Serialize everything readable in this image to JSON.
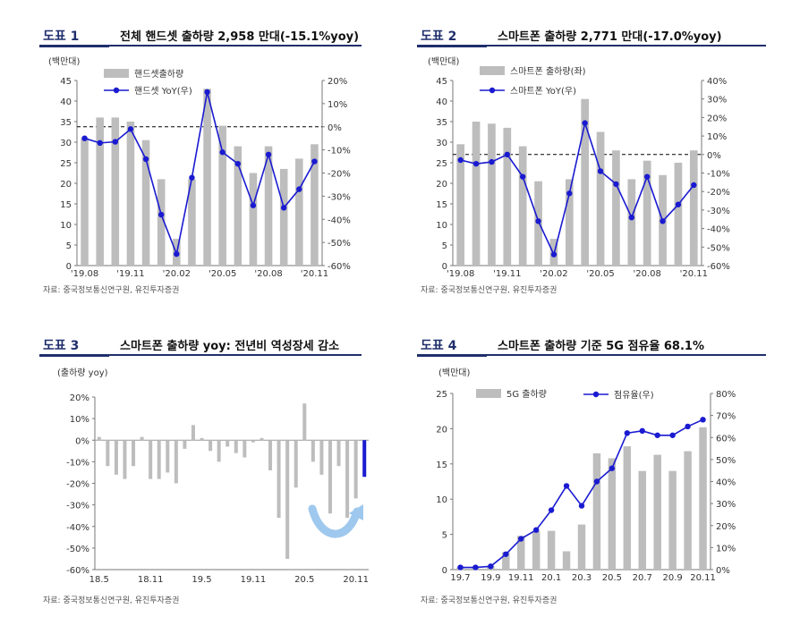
{
  "panels": [
    {
      "num": "도표 1",
      "title": "전체 핸드셋 출하량 2,958 만대(-15.1%yoy)",
      "source": "자료: 중국정보통신연구원, 유진투자증권"
    },
    {
      "num": "도표 2",
      "title": "스마트폰 출하량 2,771 만대(-17.0%yoy)",
      "source": "자료: 중국정보통신연구원, 유진투자증권"
    },
    {
      "num": "도표 3",
      "title": "스마트폰 출하량 yoy: 전년비 역성장세 감소",
      "source": "자료: 중국정보통신연구원, 유진투자증권"
    },
    {
      "num": "도표 4",
      "title": "스마트폰 출하량 기준 5G 점유율 68.1%",
      "source": "자료: 중국정보통신연구원, 유진투자증권"
    }
  ],
  "chart_data": [
    {
      "type": "bar+line",
      "unit": "(백만대)",
      "ylim": [
        0,
        45
      ],
      "y2lim": [
        -60,
        20
      ],
      "yticks": [
        "0",
        "5",
        "10",
        "15",
        "20",
        "25",
        "30",
        "35",
        "40",
        "45"
      ],
      "y2ticks": [
        "-60%",
        "-50%",
        "-40%",
        "-30%",
        "-20%",
        "-10%",
        "0%",
        "10%",
        "20%"
      ],
      "xticks": [
        {
          "i": 0,
          "label": "'19.08"
        },
        {
          "i": 3,
          "label": "'19.11"
        },
        {
          "i": 6,
          "label": "'20.02"
        },
        {
          "i": 9,
          "label": "'20.05"
        },
        {
          "i": 12,
          "label": "'20.08"
        },
        {
          "i": 15,
          "label": "'20.11"
        }
      ],
      "series": [
        {
          "name": "핸드셋출하량",
          "kind": "bar",
          "color": "#bdbdbd",
          "values": [
            31,
            36,
            36,
            35,
            30.5,
            21,
            6.5,
            21,
            43,
            34,
            29,
            22.5,
            29,
            23.5,
            26,
            29.5
          ]
        },
        {
          "name": "핸드셋 YoY(우)",
          "kind": "line",
          "color": "#1a1ad1",
          "values": [
            -5,
            -7,
            -6.5,
            -1,
            -14,
            -38,
            -55,
            -22,
            15,
            -11,
            -16,
            -34,
            -12,
            -35,
            -27,
            -15
          ]
        }
      ]
    },
    {
      "type": "bar+line",
      "unit": "(백만대)",
      "ylim": [
        0,
        45
      ],
      "y2lim": [
        -60,
        40
      ],
      "yticks": [
        "0",
        "5",
        "10",
        "15",
        "20",
        "25",
        "30",
        "35",
        "40",
        "45"
      ],
      "y2ticks": [
        "-60%",
        "-50%",
        "-40%",
        "-30%",
        "-20%",
        "-10%",
        "0%",
        "10%",
        "20%",
        "30%",
        "40%"
      ],
      "xticks": [
        {
          "i": 0,
          "label": "'19.08"
        },
        {
          "i": 3,
          "label": "'19.11"
        },
        {
          "i": 6,
          "label": "'20.02"
        },
        {
          "i": 9,
          "label": "'20.05"
        },
        {
          "i": 12,
          "label": "'20.08"
        },
        {
          "i": 15,
          "label": "'20.11"
        }
      ],
      "series": [
        {
          "name": "스마트폰 출하량(좌)",
          "kind": "bar",
          "color": "#bdbdbd",
          "values": [
            29.5,
            35,
            34.5,
            33.5,
            29,
            20.5,
            6.5,
            21,
            40.5,
            32.5,
            28,
            21,
            25.5,
            22,
            25,
            28
          ]
        },
        {
          "name": "스마트폰 YoY(우)",
          "kind": "line",
          "color": "#1a1ad1",
          "values": [
            -3,
            -5,
            -4,
            0,
            -12,
            -36,
            -54,
            -21,
            17,
            -9,
            -16,
            -34,
            -12,
            -36,
            -27,
            -16.5
          ]
        }
      ]
    },
    {
      "type": "bar",
      "unit": "(출하량 yoy)",
      "ylim": [
        -60,
        20
      ],
      "yticks": [
        "-60%",
        "-50%",
        "-40%",
        "-30%",
        "-20%",
        "-10%",
        "0%",
        "10%",
        "20%"
      ],
      "xticks": [
        {
          "i": 0,
          "label": "18.5"
        },
        {
          "i": 6,
          "label": "18.11"
        },
        {
          "i": 12,
          "label": "19.5"
        },
        {
          "i": 18,
          "label": "19.11"
        },
        {
          "i": 24,
          "label": "20.5"
        },
        {
          "i": 30,
          "label": "20.11"
        }
      ],
      "highlight_color": "#1a1ad1",
      "series": [
        {
          "name": "스마트폰 출하량 yoy",
          "kind": "bar",
          "color": "#bdbdbd",
          "values": [
            1.5,
            -12,
            -16,
            -18,
            -12,
            1.5,
            -18,
            -18,
            -15,
            -20,
            -4,
            7,
            1,
            -5,
            -10,
            -3,
            -6,
            -8,
            -1,
            1,
            -14,
            -36,
            -55,
            -22,
            17,
            -10,
            -16,
            -34,
            -12,
            -36,
            -27,
            -17
          ]
        }
      ]
    },
    {
      "type": "bar+line",
      "unit": "(백만대)",
      "ylim": [
        0,
        25
      ],
      "y2lim": [
        0,
        80
      ],
      "yticks": [
        "0",
        "5",
        "10",
        "15",
        "20",
        "25"
      ],
      "y2ticks": [
        "0%",
        "10%",
        "20%",
        "30%",
        "40%",
        "50%",
        "60%",
        "70%",
        "80%"
      ],
      "xticks": [
        {
          "i": 0,
          "label": "19.7"
        },
        {
          "i": 2,
          "label": "19.9"
        },
        {
          "i": 4,
          "label": "19.11"
        },
        {
          "i": 6,
          "label": "20.1"
        },
        {
          "i": 8,
          "label": "20.3"
        },
        {
          "i": 10,
          "label": "20.5"
        },
        {
          "i": 12,
          "label": "20.7"
        },
        {
          "i": 14,
          "label": "20.9"
        },
        {
          "i": 16,
          "label": "20.11"
        }
      ],
      "series": [
        {
          "name": "5G 출하량",
          "kind": "bar",
          "color": "#bdbdbd",
          "values": [
            0.3,
            0.2,
            0.5,
            2.5,
            4.8,
            5.5,
            5.5,
            2.6,
            6.4,
            16.5,
            15.8,
            17.5,
            14,
            16.3,
            14,
            16.8,
            20.2
          ]
        },
        {
          "name": "점유율(우)",
          "kind": "line",
          "color": "#1a1ad1",
          "values": [
            1,
            1,
            1.5,
            7,
            14,
            18,
            27,
            38,
            29,
            40,
            46,
            62,
            63,
            61,
            61,
            65,
            68.1
          ]
        }
      ]
    }
  ]
}
